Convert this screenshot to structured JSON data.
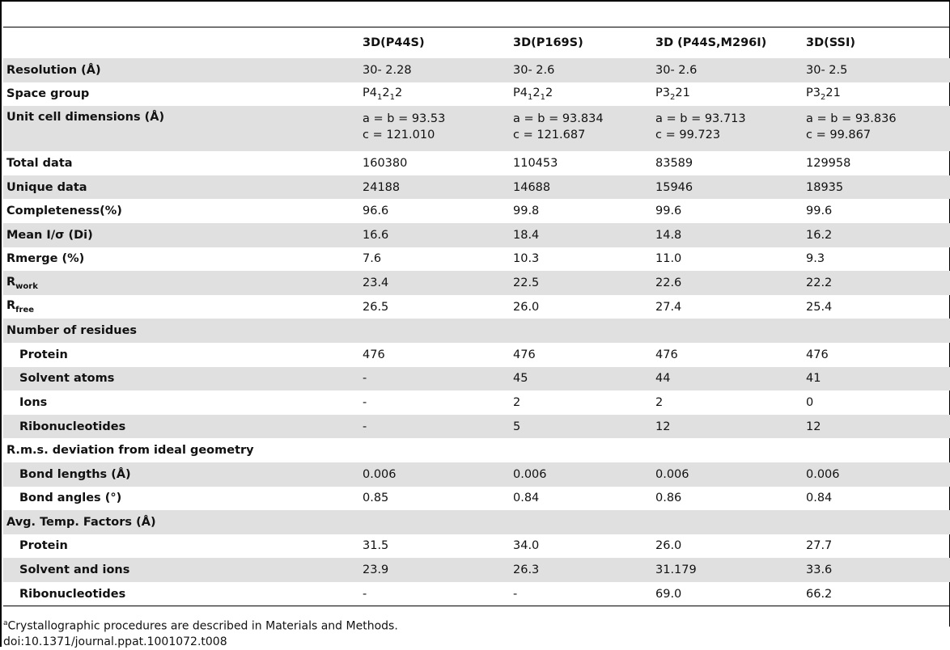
{
  "columns": [
    "",
    "3D(P44S)",
    "3D(P169S)",
    "3D (P44S,M296I)",
    "3D(SSI)"
  ],
  "rows": [
    {
      "label": "Resolution (Å)",
      "indent": false,
      "shade": true,
      "cells": [
        "30- 2.28",
        "30- 2.6",
        "30- 2.6",
        "30- 2.5"
      ]
    },
    {
      "label": "Space group",
      "indent": false,
      "shade": false,
      "cells_html": [
        "P4<sub>1</sub>2<sub>1</sub>2",
        "P4<sub>1</sub>2<sub>1</sub>2",
        "P3<sub>2</sub>21",
        "P3<sub>2</sub>21"
      ]
    },
    {
      "label": "Unit cell dimensions (Å)",
      "indent": false,
      "shade": true,
      "tall": true,
      "cells_multi": [
        [
          "a = b = 93.53",
          "c = 121.010"
        ],
        [
          "a = b = 93.834",
          "c = 121.687"
        ],
        [
          "a = b = 93.713",
          "c = 99.723"
        ],
        [
          "a = b = 93.836",
          "c = 99.867"
        ]
      ]
    },
    {
      "label": "Total data",
      "indent": false,
      "shade": false,
      "cells": [
        "160380",
        "110453",
        "83589",
        "129958"
      ]
    },
    {
      "label": "Unique data",
      "indent": false,
      "shade": true,
      "cells": [
        "24188",
        "14688",
        "15946",
        "18935"
      ]
    },
    {
      "label": "Completeness(%)",
      "indent": false,
      "shade": false,
      "cells": [
        "96.6",
        "99.8",
        "99.6",
        "99.6"
      ]
    },
    {
      "label": "Mean I/σ (Di)",
      "indent": false,
      "shade": true,
      "cells": [
        "16.6",
        "18.4",
        "14.8",
        "16.2"
      ]
    },
    {
      "label": "Rmerge (%)",
      "indent": false,
      "shade": false,
      "cells": [
        "7.6",
        "10.3",
        "11.0",
        "9.3"
      ]
    },
    {
      "label_html": "R<sub>work</sub>",
      "indent": false,
      "shade": true,
      "cells": [
        "23.4",
        "22.5",
        "22.6",
        "22.2"
      ]
    },
    {
      "label_html": "R<sub>free</sub>",
      "indent": false,
      "shade": false,
      "cells": [
        "26.5",
        "26.0",
        "27.4",
        "25.4"
      ]
    },
    {
      "label": "Number of residues",
      "indent": false,
      "shade": true,
      "cells": [
        "",
        "",
        "",
        ""
      ]
    },
    {
      "label": "Protein",
      "indent": true,
      "shade": false,
      "cells": [
        "476",
        "476",
        "476",
        "476"
      ]
    },
    {
      "label": "Solvent atoms",
      "indent": true,
      "shade": true,
      "cells": [
        "-",
        "45",
        "44",
        "41"
      ]
    },
    {
      "label": "Ions",
      "indent": true,
      "shade": false,
      "cells": [
        "-",
        "2",
        "2",
        "0"
      ]
    },
    {
      "label": "Ribonucleotides",
      "indent": true,
      "shade": true,
      "cells": [
        "-",
        "5",
        "12",
        "12"
      ]
    },
    {
      "label": "R.m.s. deviation from ideal geometry",
      "indent": false,
      "shade": false,
      "cells": [
        "",
        "",
        "",
        ""
      ]
    },
    {
      "label": "Bond lengths (Å)",
      "indent": true,
      "shade": true,
      "cells": [
        "0.006",
        "0.006",
        "0.006",
        "0.006"
      ]
    },
    {
      "label": "Bond angles (°)",
      "indent": true,
      "shade": false,
      "cells": [
        "0.85",
        "0.84",
        "0.86",
        "0.84"
      ]
    },
    {
      "label": "Avg. Temp. Factors (Å)",
      "indent": false,
      "shade": true,
      "cells": [
        "",
        "",
        "",
        ""
      ]
    },
    {
      "label": "Protein",
      "indent": true,
      "shade": false,
      "cells": [
        "31.5",
        "34.0",
        "26.0",
        "27.7"
      ]
    },
    {
      "label": "Solvent and ions",
      "indent": true,
      "shade": true,
      "cells": [
        "23.9",
        "26.3",
        "31.179",
        "33.6"
      ]
    },
    {
      "label": "Ribonucleotides",
      "indent": true,
      "shade": false,
      "cells": [
        "-",
        "-",
        "69.0",
        "66.2"
      ]
    }
  ],
  "footnote_marker": "a",
  "footnote": "Crystallographic procedures are described in Materials and Methods.",
  "doi": "doi:10.1371/journal.ppat.1001072.t008"
}
